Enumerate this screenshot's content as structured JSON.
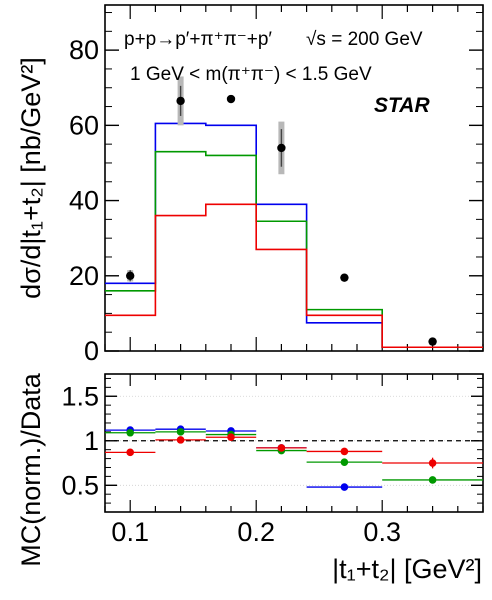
{
  "chart_data": [
    {
      "type": "line",
      "panel": "top",
      "annotation_process": "p+p→p′+π⁺π⁻+p′",
      "annotation_energy": "√s = 200 GeV",
      "annotation_mass": "1 GeV < m(π⁺π⁻) < 1.5 GeV",
      "experiment_label": "STAR",
      "ylabel": "dσ/d|t₁+t₂| [nb/GeV²]",
      "xlim": [
        0.08,
        0.38
      ],
      "ylim": [
        0,
        92
      ],
      "yticks": [
        "0",
        "20",
        "40",
        "60",
        "80"
      ],
      "bin_edges": [
        0.08,
        0.12,
        0.16,
        0.2,
        0.24,
        0.3,
        0.38
      ],
      "mc_series": [
        {
          "color": "#0000ee",
          "values": [
            18,
            60.5,
            60,
            39,
            7.5,
            1
          ]
        },
        {
          "color": "#009900",
          "values": [
            16,
            53,
            52,
            34.5,
            11,
            1
          ]
        },
        {
          "color": "#ee0000",
          "values": [
            9.5,
            36,
            39,
            27,
            9.5,
            1
          ]
        }
      ],
      "data_points": {
        "color": "#000000",
        "x": [
          0.1,
          0.14,
          0.18,
          0.22,
          0.27,
          0.34
        ],
        "y": [
          20,
          66.5,
          67,
          54,
          19.5,
          2.5
        ],
        "err": [
          1.5,
          4,
          0,
          5,
          0,
          0
        ],
        "syst_err": [
          1.5,
          6.5,
          0,
          7,
          0,
          0
        ]
      }
    },
    {
      "type": "scatter",
      "panel": "bottom",
      "ylabel": "MC(norm.)/Data",
      "xlabel": "|t₁+t₂| [GeV²]",
      "xlim": [
        0.08,
        0.38
      ],
      "ylim": [
        0.2,
        1.75
      ],
      "yticks": [
        "0.5",
        "1",
        "1.5"
      ],
      "xticks": [
        "0.1",
        "0.2",
        "0.3"
      ],
      "reference_line": 1,
      "grid": "horizontal dotted",
      "series": [
        {
          "color": "#0000ee",
          "x": [
            0.1,
            0.14,
            0.18,
            0.22,
            0.27
          ],
          "values": [
            1.12,
            1.13,
            1.11,
            0.92,
            0.48
          ],
          "xerr_lo": [
            0.08,
            0.12,
            0.16,
            0.2,
            0.24
          ],
          "xerr_hi": [
            0.12,
            0.16,
            0.2,
            0.24,
            0.3
          ]
        },
        {
          "color": "#009900",
          "x": [
            0.1,
            0.14,
            0.18,
            0.22,
            0.27,
            0.34
          ],
          "values": [
            1.09,
            1.1,
            1.07,
            0.89,
            0.76,
            0.56
          ],
          "xerr_lo": [
            0.08,
            0.12,
            0.16,
            0.2,
            0.24,
            0.3
          ],
          "xerr_hi": [
            0.12,
            0.16,
            0.2,
            0.24,
            0.3,
            0.38
          ]
        },
        {
          "color": "#ee0000",
          "x": [
            0.1,
            0.14,
            0.18,
            0.22,
            0.27,
            0.34
          ],
          "values": [
            0.87,
            1.01,
            1.04,
            0.92,
            0.88,
            0.75
          ],
          "xerr_lo": [
            0.08,
            0.12,
            0.16,
            0.2,
            0.24,
            0.3
          ],
          "xerr_hi": [
            0.12,
            0.16,
            0.2,
            0.24,
            0.3,
            0.38
          ],
          "yerr": [
            0,
            0,
            0,
            0,
            0,
            0.06
          ]
        }
      ]
    }
  ]
}
